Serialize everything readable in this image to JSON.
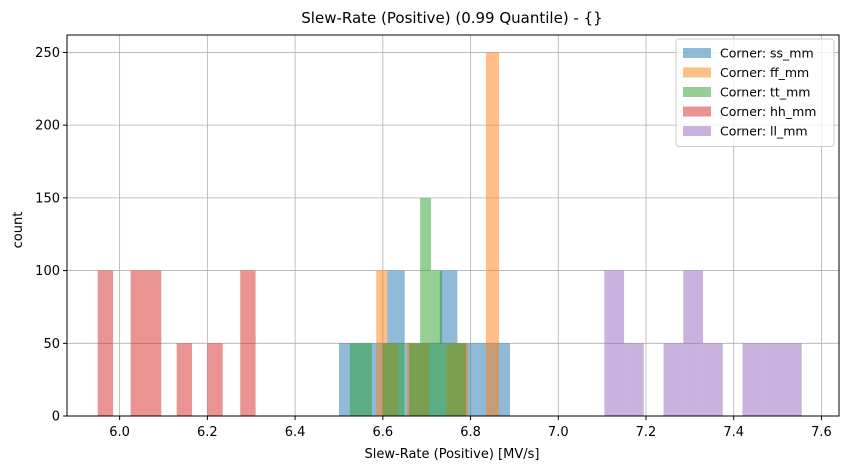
{
  "chart_data": {
    "type": "histogram",
    "title": "Slew-Rate (Positive) (0.99 Quantile) - {}",
    "xlabel": "Slew-Rate (Positive) [MV/s]",
    "ylabel": "count",
    "xlim": [
      5.88,
      7.64
    ],
    "ylim": [
      0,
      262
    ],
    "xticks": [
      6.0,
      6.2,
      6.4,
      6.6,
      6.8,
      7.0,
      7.2,
      7.4,
      7.6
    ],
    "xtick_labels": [
      "6.0",
      "6.2",
      "6.4",
      "6.6",
      "6.8",
      "7.0",
      "7.2",
      "7.4",
      "7.6"
    ],
    "yticks": [
      0,
      50,
      100,
      150,
      200,
      250
    ],
    "ytick_labels": [
      "0",
      "50",
      "100",
      "150",
      "200",
      "250"
    ],
    "grid": true,
    "legend_position": "top-right",
    "series": [
      {
        "name": "Corner: ss_mm",
        "color": "#1f77b4",
        "opacity": 0.5,
        "bins": [
          {
            "x0": 6.5,
            "x1": 6.53,
            "count": 50
          },
          {
            "x0": 6.53,
            "x1": 6.57,
            "count": 50
          },
          {
            "x0": 6.57,
            "x1": 6.61,
            "count": 50
          },
          {
            "x0": 6.61,
            "x1": 6.65,
            "count": 100
          },
          {
            "x0": 6.65,
            "x1": 6.69,
            "count": 50
          },
          {
            "x0": 6.69,
            "x1": 6.73,
            "count": 50
          },
          {
            "x0": 6.73,
            "x1": 6.77,
            "count": 100
          },
          {
            "x0": 6.77,
            "x1": 6.81,
            "count": 50
          },
          {
            "x0": 6.81,
            "x1": 6.85,
            "count": 50
          },
          {
            "x0": 6.85,
            "x1": 6.89,
            "count": 50
          }
        ]
      },
      {
        "name": "Corner: ff_mm",
        "color": "#ff7f0e",
        "opacity": 0.5,
        "bins": [
          {
            "x0": 6.585,
            "x1": 6.61,
            "count": 100
          },
          {
            "x0": 6.61,
            "x1": 6.635,
            "count": 50
          },
          {
            "x0": 6.655,
            "x1": 6.68,
            "count": 50
          },
          {
            "x0": 6.68,
            "x1": 6.705,
            "count": 50
          },
          {
            "x0": 6.745,
            "x1": 6.77,
            "count": 50
          },
          {
            "x0": 6.77,
            "x1": 6.795,
            "count": 50
          },
          {
            "x0": 6.835,
            "x1": 6.865,
            "count": 250
          }
        ]
      },
      {
        "name": "Corner: tt_mm",
        "color": "#2ca02c",
        "opacity": 0.5,
        "bins": [
          {
            "x0": 6.525,
            "x1": 6.55,
            "count": 50
          },
          {
            "x0": 6.55,
            "x1": 6.575,
            "count": 50
          },
          {
            "x0": 6.6,
            "x1": 6.625,
            "count": 50
          },
          {
            "x0": 6.625,
            "x1": 6.65,
            "count": 50
          },
          {
            "x0": 6.66,
            "x1": 6.685,
            "count": 50
          },
          {
            "x0": 6.685,
            "x1": 6.71,
            "count": 150
          },
          {
            "x0": 6.71,
            "x1": 6.735,
            "count": 100
          },
          {
            "x0": 6.735,
            "x1": 6.76,
            "count": 50
          },
          {
            "x0": 6.76,
            "x1": 6.79,
            "count": 50
          }
        ]
      },
      {
        "name": "Corner: hh_mm",
        "color": "#d62728",
        "opacity": 0.5,
        "bins": [
          {
            "x0": 5.95,
            "x1": 5.985,
            "count": 100
          },
          {
            "x0": 6.025,
            "x1": 6.06,
            "count": 100
          },
          {
            "x0": 6.06,
            "x1": 6.095,
            "count": 100
          },
          {
            "x0": 6.13,
            "x1": 6.165,
            "count": 50
          },
          {
            "x0": 6.2,
            "x1": 6.235,
            "count": 50
          },
          {
            "x0": 6.275,
            "x1": 6.31,
            "count": 100
          }
        ]
      },
      {
        "name": "Corner: ll_mm",
        "color": "#9467bd",
        "opacity": 0.5,
        "bins": [
          {
            "x0": 7.105,
            "x1": 7.15,
            "count": 100
          },
          {
            "x0": 7.15,
            "x1": 7.195,
            "count": 50
          },
          {
            "x0": 7.24,
            "x1": 7.285,
            "count": 50
          },
          {
            "x0": 7.285,
            "x1": 7.33,
            "count": 100
          },
          {
            "x0": 7.33,
            "x1": 7.375,
            "count": 50
          },
          {
            "x0": 7.42,
            "x1": 7.465,
            "count": 50
          },
          {
            "x0": 7.465,
            "x1": 7.51,
            "count": 50
          },
          {
            "x0": 7.51,
            "x1": 7.555,
            "count": 50
          }
        ]
      }
    ]
  }
}
